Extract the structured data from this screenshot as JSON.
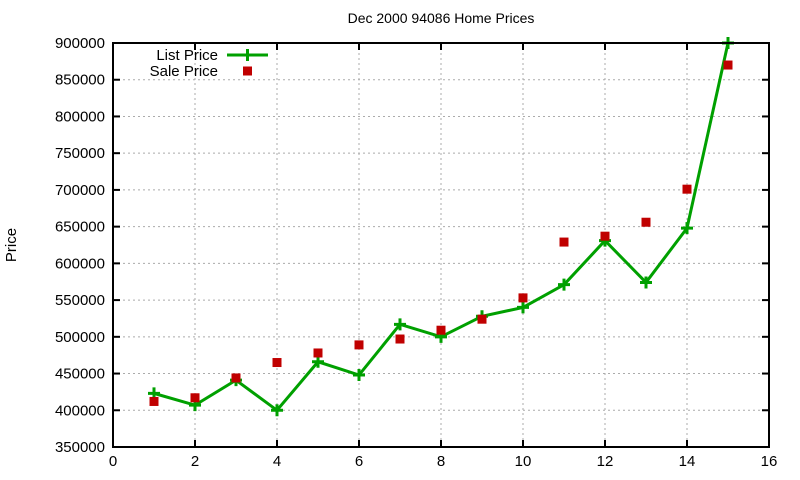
{
  "chart_data": {
    "type": "line",
    "title": "Dec 2000 94086 Home Prices",
    "xlabel": "",
    "ylabel": "Price",
    "xlim": [
      0,
      16
    ],
    "ylim": [
      350000,
      900000
    ],
    "x_ticks": [
      0,
      2,
      4,
      6,
      8,
      10,
      12,
      14,
      16
    ],
    "y_ticks": [
      350000,
      400000,
      450000,
      500000,
      550000,
      600000,
      650000,
      700000,
      750000,
      800000,
      850000,
      900000
    ],
    "grid": true,
    "legend_position": "top-left-inside",
    "x": [
      1,
      2,
      3,
      4,
      5,
      6,
      7,
      8,
      9,
      10,
      11,
      12,
      13,
      14,
      15
    ],
    "series": [
      {
        "name": "List Price",
        "style": "line-with-cross-markers",
        "color": "#00A000",
        "values": [
          423000,
          407000,
          441000,
          400000,
          466000,
          448000,
          517000,
          500000,
          528000,
          540000,
          571000,
          631000,
          574000,
          648000,
          900000
        ]
      },
      {
        "name": "Sale Price",
        "style": "square-points",
        "color": "#C00000",
        "values": [
          412000,
          417000,
          444000,
          465000,
          478000,
          489000,
          497000,
          509000,
          524000,
          553000,
          629000,
          637000,
          656000,
          701000,
          870000
        ]
      }
    ],
    "colors": {
      "grid": "#ABABAB",
      "axis": "#000000",
      "text": "#000000",
      "background": "#FFFFFF"
    }
  }
}
